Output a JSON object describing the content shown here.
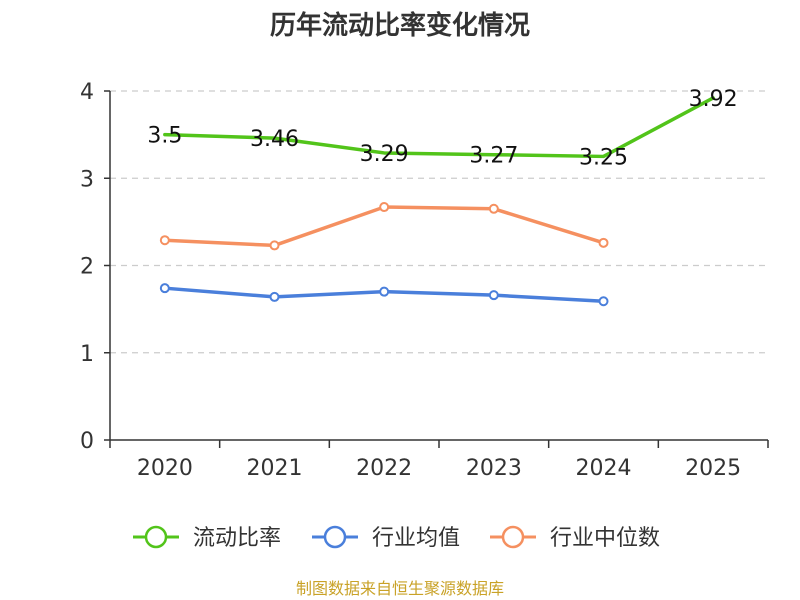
{
  "colors": {
    "current_ratio": "#52c41a",
    "industry_mean": "#4a7fdb",
    "industry_median": "#f59060",
    "axis": "#333333",
    "grid": "#cccccc",
    "source": "#c9a227"
  },
  "source_text": "制图数据来自恒生聚源数据库",
  "chart_data": {
    "type": "line",
    "title": "历年流动比率变化情况",
    "xlabel": "",
    "ylabel": "",
    "categories": [
      "2020",
      "2021",
      "2022",
      "2023",
      "2024",
      "2025"
    ],
    "ylim": [
      0,
      4
    ],
    "yticks": [
      "0",
      "1",
      "2",
      "3",
      "4"
    ],
    "grid": true,
    "legend_position": "bottom-center",
    "series": [
      {
        "key": "current_ratio",
        "name": "流动比率",
        "values": [
          3.5,
          3.46,
          3.29,
          3.27,
          3.25,
          3.92
        ],
        "labels": [
          "3.5",
          "3.46",
          "3.29",
          "3.27",
          "3.25",
          "3.92"
        ]
      },
      {
        "key": "industry_mean",
        "name": "行业均值",
        "values": [
          1.74,
          1.64,
          1.7,
          1.66,
          1.59,
          null
        ]
      },
      {
        "key": "industry_median",
        "name": "行业中位数",
        "values": [
          2.29,
          2.23,
          2.67,
          2.65,
          2.26,
          null
        ]
      }
    ]
  }
}
